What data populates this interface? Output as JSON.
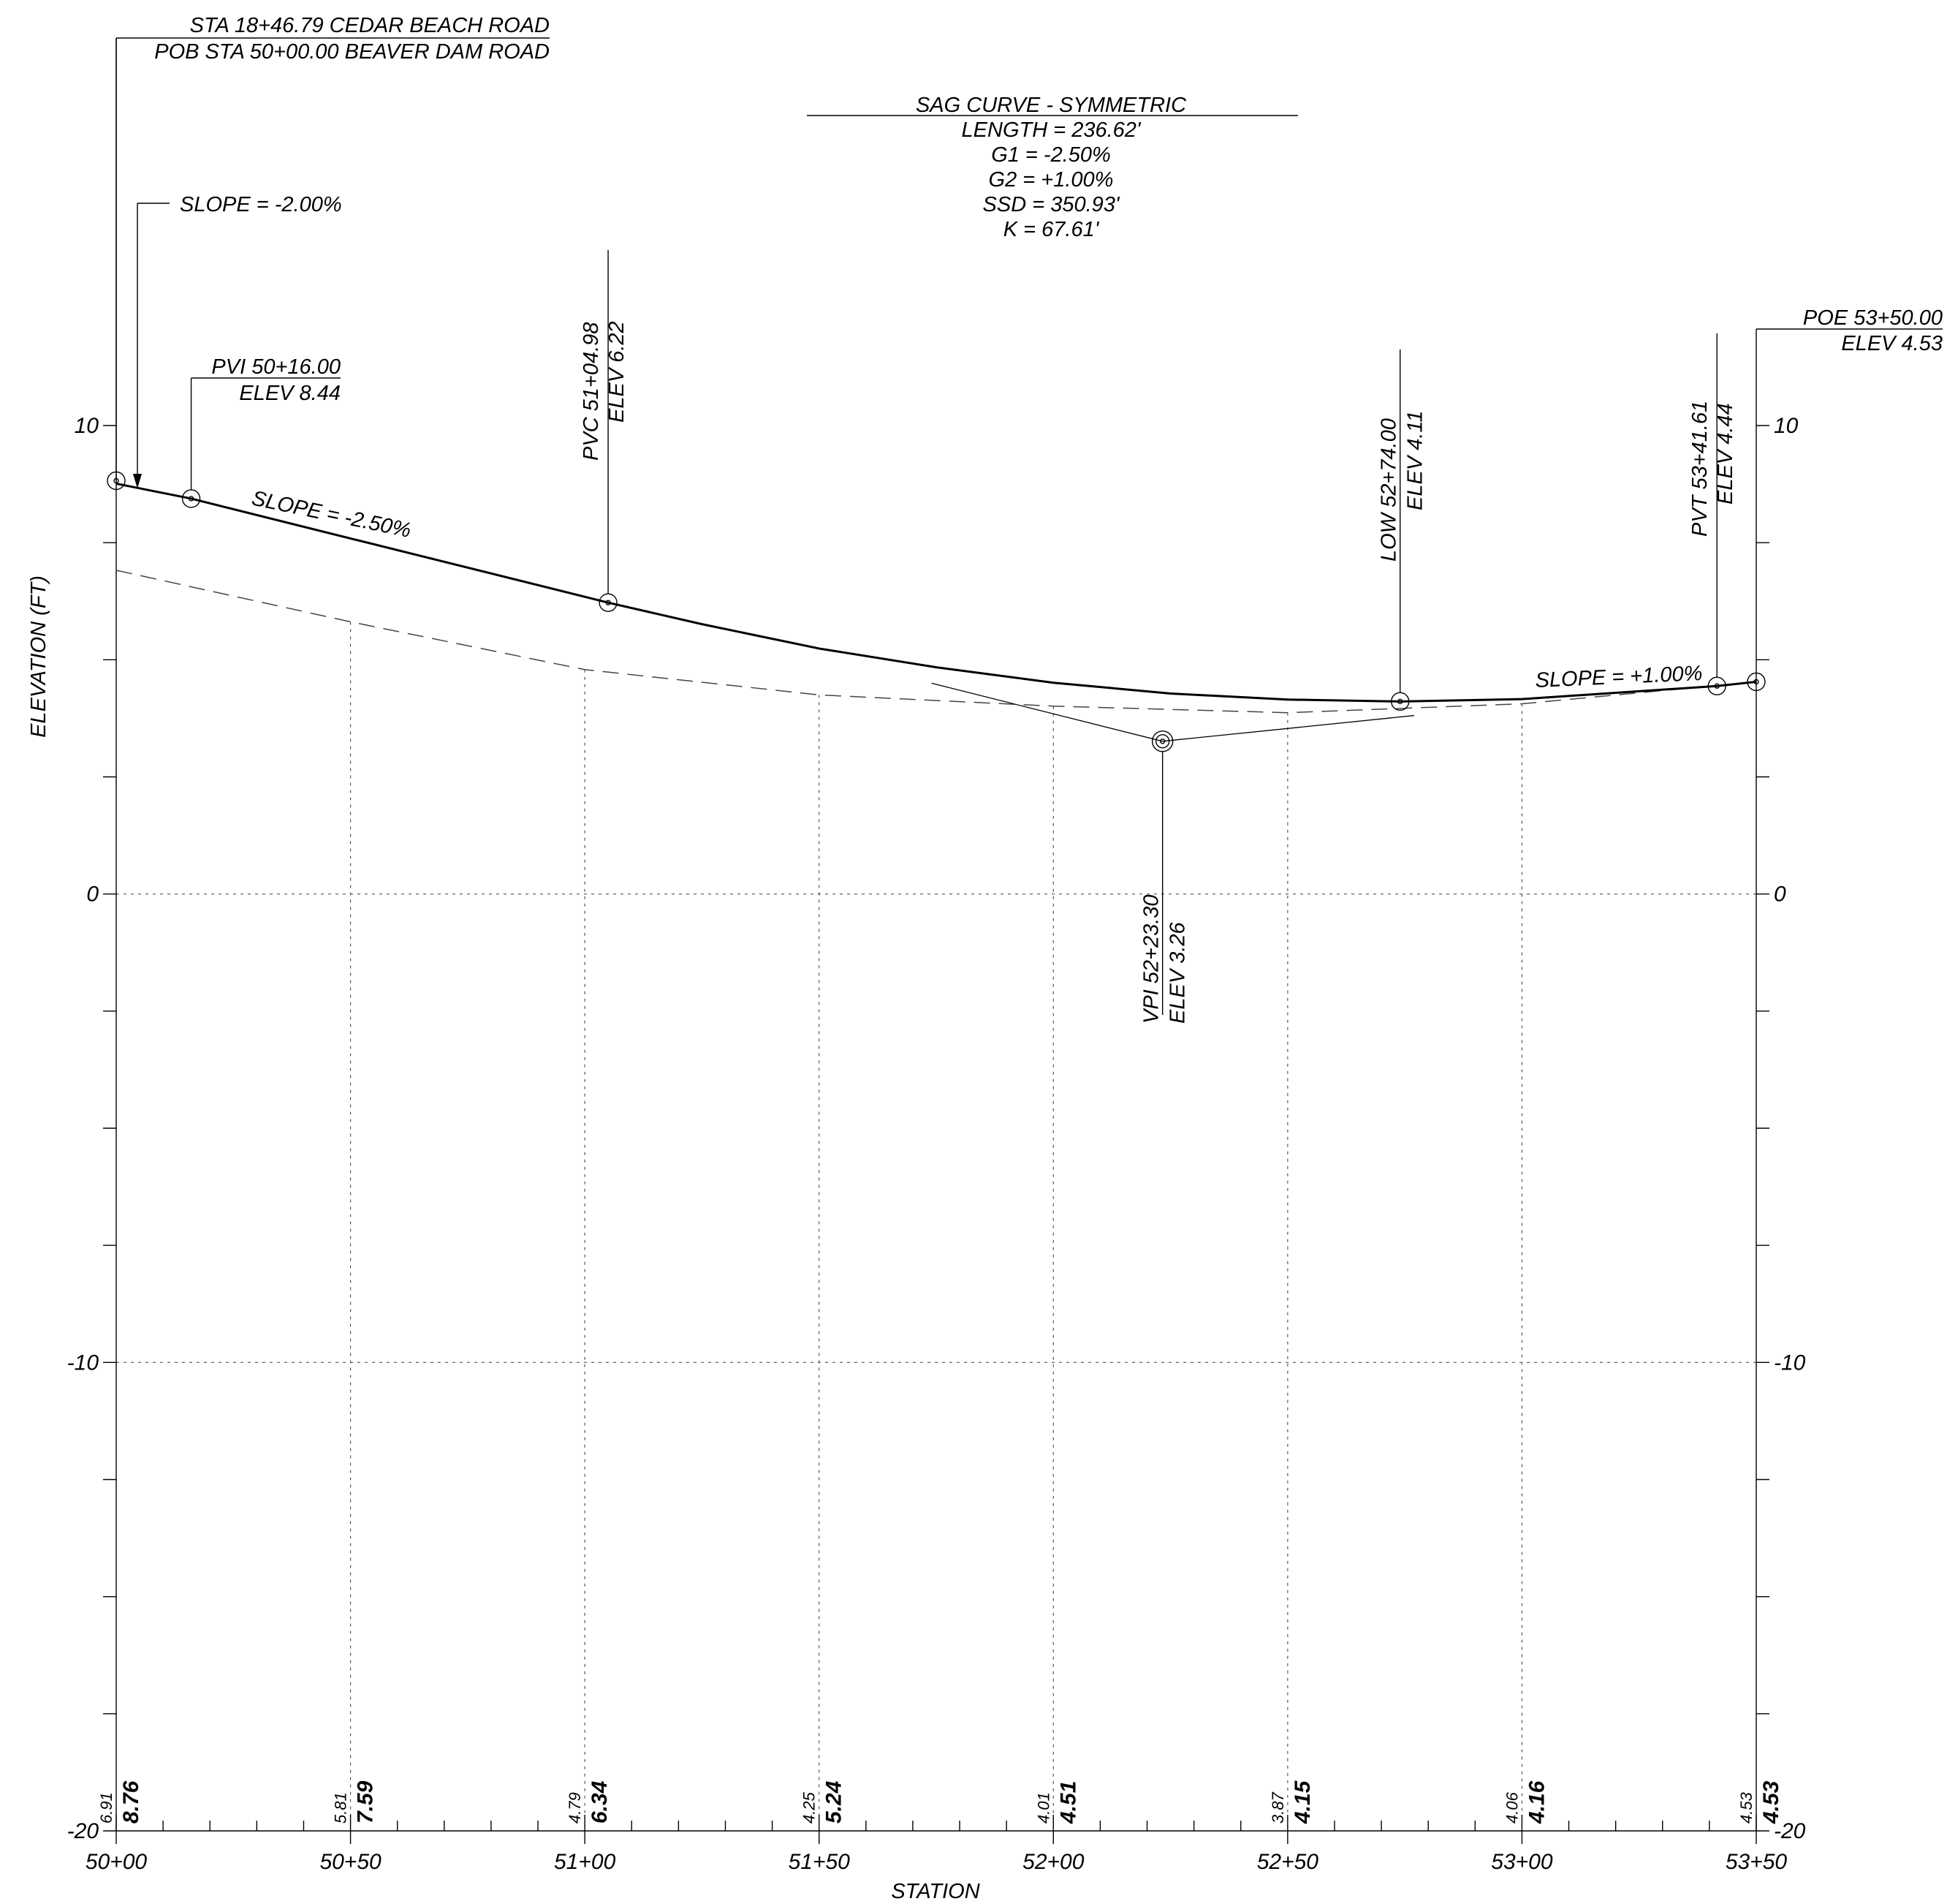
{
  "chart_data": {
    "type": "line",
    "xlabel": "STATION",
    "ylabel": "ELEVATION (FT)",
    "xlim": [
      5000,
      5350
    ],
    "ylim": [
      -20,
      10
    ],
    "x_tick_labels": [
      "50+00",
      "50+50",
      "51+00",
      "51+50",
      "52+00",
      "52+50",
      "53+00",
      "53+50"
    ],
    "y_tick_labels": [
      "10",
      "0",
      "-10",
      "-20"
    ],
    "grid": true,
    "series": [
      {
        "style": "solid",
        "role": "proposed profile",
        "points": [
          [
            5000,
            8.76
          ],
          [
            5016,
            8.44
          ],
          [
            5050,
            7.59
          ],
          [
            5104.98,
            6.22
          ],
          [
            5125,
            5.76
          ],
          [
            5150,
            5.24
          ],
          [
            5175,
            4.84
          ],
          [
            5200,
            4.51
          ],
          [
            5225,
            4.28
          ],
          [
            5250,
            4.15
          ],
          [
            5274,
            4.11
          ],
          [
            5300,
            4.16
          ],
          [
            5341.61,
            4.44
          ],
          [
            5350,
            4.53
          ]
        ]
      },
      {
        "style": "dashed",
        "role": "existing ground",
        "points": [
          [
            5000,
            6.91
          ],
          [
            5050,
            5.81
          ],
          [
            5100,
            4.79
          ],
          [
            5150,
            4.25
          ],
          [
            5200,
            4.01
          ],
          [
            5250,
            3.87
          ],
          [
            5300,
            4.06
          ],
          [
            5350,
            4.53
          ]
        ]
      }
    ],
    "bottom_elevations": [
      {
        "station": 5000,
        "existing": "6.91",
        "proposed": "8.76"
      },
      {
        "station": 5050,
        "existing": "5.81",
        "proposed": "7.59"
      },
      {
        "station": 5100,
        "existing": "4.79",
        "proposed": "6.34"
      },
      {
        "station": 5150,
        "existing": "4.25",
        "proposed": "5.24"
      },
      {
        "station": 5200,
        "existing": "4.01",
        "proposed": "4.51"
      },
      {
        "station": 5250,
        "existing": "3.87",
        "proposed": "4.15"
      },
      {
        "station": 5300,
        "existing": "4.06",
        "proposed": "4.16"
      },
      {
        "station": 5350,
        "existing": "4.53",
        "proposed": "4.53"
      }
    ],
    "annotations": {
      "pob": {
        "line1": "STA 18+46.79 CEDAR BEACH ROAD",
        "line2": "POB STA 50+00.00 BEAVER DAM ROAD",
        "station": 5000,
        "elev": 8.76
      },
      "slope_start": {
        "text": "SLOPE = -2.00%"
      },
      "pvi": {
        "line1": "PVI 50+16.00",
        "line2": "ELEV 8.44",
        "station": 5016,
        "elev": 8.44
      },
      "slope_left": {
        "text": "SLOPE = -2.50%"
      },
      "curve": {
        "title": "SAG CURVE - SYMMETRIC",
        "lines": [
          "LENGTH = 236.62'",
          "G1 = -2.50%",
          "G2 = +1.00%",
          "SSD = 350.93'",
          "K = 67.61'"
        ]
      },
      "pvc": {
        "line1": "PVC 51+04.98",
        "line2": "ELEV 6.22",
        "station": 5104.98,
        "elev": 6.22
      },
      "vpi": {
        "line1": "VPI 52+23.30",
        "line2": "ELEV 3.26",
        "station": 5223.3,
        "elev": 3.26
      },
      "low": {
        "line1": "LOW 52+74.00",
        "line2": "ELEV 4.11",
        "station": 5274,
        "elev": 4.11
      },
      "pvt": {
        "line1": "PVT 53+41.61",
        "line2": "ELEV 4.44",
        "station": 5341.61,
        "elev": 4.44
      },
      "slope_right": {
        "text": "SLOPE = +1.00%"
      },
      "poe": {
        "line1": "POE 53+50.00",
        "line2": "ELEV 4.53",
        "station": 5350,
        "elev": 4.53
      }
    }
  }
}
